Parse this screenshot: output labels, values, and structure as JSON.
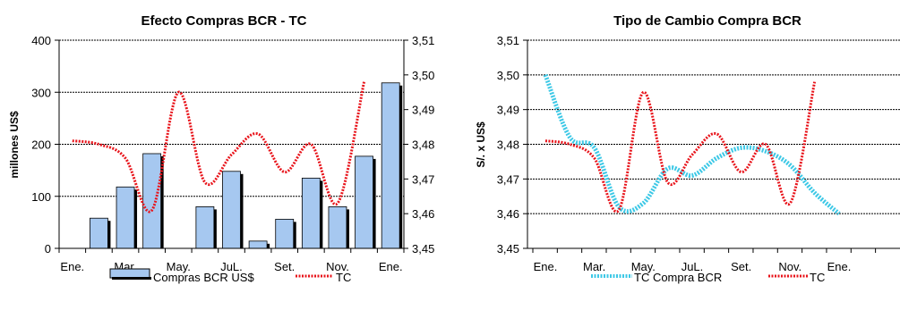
{
  "chart_data": [
    {
      "type": "bar",
      "title": "Efecto Compras BCR - TC",
      "ylabel": "millones US$",
      "xlabel": "",
      "x_ticks": [
        "Ene.",
        "Mar.",
        "May.",
        "JuL.",
        "Set.",
        "Nov.",
        "Ene."
      ],
      "ylim": [
        0,
        400
      ],
      "y_ticks": [
        "0",
        "100",
        "200",
        "300",
        "400"
      ],
      "y2lim": [
        3.45,
        3.51
      ],
      "y2_ticks": [
        "3,45",
        "3,46",
        "3,47",
        "3,48",
        "3,49",
        "3,50",
        "3,51"
      ],
      "grid": "horizontal",
      "legend_position": "bottom",
      "series": [
        {
          "name": "Compras BCR US$",
          "kind": "bar",
          "color": "#a6c8f0",
          "values": [
            0,
            58,
            118,
            182,
            0,
            80,
            148,
            14,
            56,
            135,
            80,
            177,
            318
          ]
        },
        {
          "name": "TC",
          "kind": "line",
          "axis": "secondary",
          "color": "#e8141b",
          "values": [
            3.481,
            3.48,
            3.476,
            3.461,
            3.495,
            3.469,
            3.477,
            3.483,
            3.472,
            3.48,
            3.463,
            3.498
          ]
        }
      ]
    },
    {
      "type": "line",
      "title": "Tipo de Cambio Compra BCR",
      "ylabel": "S/. x US$",
      "xlabel": "",
      "x_ticks": [
        "Ene.",
        "Mar.",
        "May.",
        "JuL.",
        "Set.",
        "Nov.",
        "Ene."
      ],
      "ylim": [
        3.45,
        3.51
      ],
      "y_ticks": [
        "3,45",
        "3,46",
        "3,47",
        "3,48",
        "3,49",
        "3,50",
        "3,51"
      ],
      "grid": "horizontal",
      "legend_position": "bottom",
      "series": [
        {
          "name": "TC Compra BCR",
          "color": "#3cc8e6",
          "values": [
            3.5,
            3.482,
            3.479,
            3.462,
            3.463,
            3.473,
            3.471,
            3.476,
            3.479,
            3.478,
            3.474,
            3.466,
            3.46
          ]
        },
        {
          "name": "TC",
          "color": "#e8141b",
          "values": [
            3.481,
            3.48,
            3.476,
            3.461,
            3.495,
            3.469,
            3.477,
            3.483,
            3.472,
            3.48,
            3.463,
            3.498
          ]
        }
      ]
    }
  ]
}
